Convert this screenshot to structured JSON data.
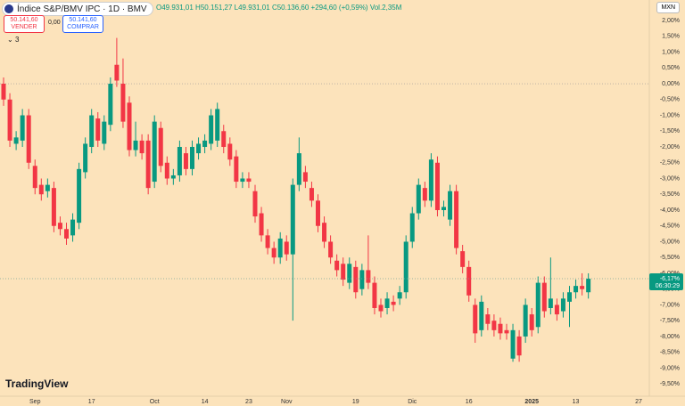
{
  "header": {
    "symbol_title": "Índice S&P/BMV IPC · 1D · BMV",
    "ohlc_open": "O49.931,01",
    "ohlc_high": "H50.151,27",
    "ohlc_low": "L49.931,01",
    "ohlc_close": "C50.136,60",
    "change": "+294,60 (+0,59%)",
    "volume": "Vol.2,35M",
    "sell_price": "50.141,60",
    "sell_label": "VENDER",
    "spread": "0,00",
    "buy_price": "50.141,60",
    "buy_label": "COMPRAR",
    "indicator_count": "3",
    "currency": "MXN",
    "brand": "TradingView"
  },
  "chart_data": {
    "type": "candlestick",
    "up_color": "#089981",
    "down_color": "#f23645",
    "grid": false,
    "categories": [
      null,
      null,
      null,
      null,
      null,
      "Sep",
      null,
      null,
      null,
      null,
      null,
      null,
      null,
      null,
      "17",
      null,
      null,
      null,
      null,
      null,
      null,
      null,
      null,
      null,
      "Oct",
      null,
      null,
      null,
      null,
      null,
      null,
      null,
      "14",
      null,
      null,
      null,
      null,
      null,
      null,
      "23",
      null,
      null,
      null,
      null,
      null,
      "Nov",
      null,
      null,
      null,
      null,
      null,
      null,
      null,
      null,
      null,
      null,
      "19",
      null,
      null,
      null,
      null,
      null,
      null,
      null,
      null,
      "Dic",
      null,
      null,
      null,
      null,
      null,
      null,
      null,
      null,
      "16",
      null,
      null,
      null,
      null,
      null,
      null,
      null,
      null,
      null,
      "2025",
      null,
      null,
      null,
      null,
      null,
      null,
      "13",
      null,
      null,
      null,
      null,
      null,
      null,
      null,
      null,
      null,
      "27"
    ],
    "open": [
      0.0,
      -0.5,
      -1.9,
      -1.8,
      -1.0,
      -2.6,
      -3.2,
      -3.4,
      -3.3,
      -4.4,
      -4.6,
      -4.8,
      -4.4,
      -2.8,
      -2.0,
      -1.1,
      -1.9,
      -1.3,
      0.6,
      0.0,
      -0.6,
      -2.1,
      -1.8,
      -1.8,
      -3.1,
      -1.4,
      -2.5,
      -3.0,
      -2.9,
      -2.2,
      -2.7,
      -2.2,
      -2.0,
      -1.9,
      -1.8,
      -1.5,
      -1.9,
      -2.3,
      -3.1,
      -3.0,
      -3.4,
      -4.1,
      -4.8,
      -5.2,
      -5.5,
      -5.0,
      -5.4,
      -3.2,
      -2.8,
      -3.3,
      -3.7,
      -4.4,
      -5.0,
      -5.6,
      -5.7,
      -6.3,
      -5.8,
      -6.5,
      -5.9,
      -6.3,
      -7.0,
      -7.1,
      -6.9,
      -6.8,
      -6.6,
      -5.0,
      -4.1,
      -3.3,
      -3.7,
      -2.5,
      -4.0,
      -4.3,
      -3.4,
      -5.3,
      -5.8,
      -7.0,
      -7.8,
      -7.3,
      -7.5,
      -7.6,
      -7.8,
      -8.7,
      -8.0,
      -8.0,
      -7.3,
      -7.7,
      -6.3,
      -7.1,
      -7.0,
      -7.2,
      -6.9,
      -6.6,
      -6.4,
      -6.6,
      null,
      null,
      null,
      null,
      null,
      null,
      null,
      null
    ],
    "high": [
      0.2,
      -0.3,
      -1.5,
      -0.8,
      -0.8,
      -2.4,
      -3.0,
      -3.0,
      -3.1,
      -4.2,
      -4.4,
      -4.1,
      -2.5,
      -1.7,
      -0.8,
      -0.9,
      -1.0,
      0.2,
      1.45,
      0.8,
      -0.4,
      -1.2,
      -1.6,
      -1.6,
      -1.0,
      -1.2,
      -2.3,
      -2.7,
      -1.8,
      -2.0,
      -1.8,
      -1.7,
      -1.6,
      -0.8,
      -0.6,
      -1.3,
      -1.7,
      -2.1,
      -2.8,
      -2.8,
      -3.2,
      -3.9,
      -4.6,
      -5.0,
      -4.7,
      -4.8,
      -3.0,
      -1.7,
      -2.6,
      -3.1,
      -3.5,
      -4.2,
      -4.8,
      -5.4,
      -5.5,
      -5.5,
      -5.6,
      -5.7,
      -4.8,
      -6.1,
      -6.8,
      -6.6,
      -6.7,
      -6.4,
      -4.8,
      -3.9,
      -3.0,
      -3.1,
      -2.2,
      -2.3,
      -3.7,
      -3.2,
      -3.2,
      -5.1,
      -5.6,
      -6.8,
      -6.7,
      -7.1,
      -7.3,
      -7.4,
      -7.6,
      -7.6,
      -7.8,
      -6.8,
      -7.1,
      -6.1,
      -6.1,
      -5.5,
      -6.8,
      -6.6,
      -6.4,
      -6.2,
      -6.0,
      -6.0,
      null,
      null,
      null,
      null,
      null,
      null,
      null,
      null
    ],
    "low": [
      -0.7,
      -2.0,
      -2.1,
      -2.0,
      -2.7,
      -3.5,
      -3.7,
      -3.6,
      -4.7,
      -4.8,
      -5.1,
      -5.0,
      -4.6,
      -3.0,
      -2.2,
      -2.0,
      -2.1,
      -1.5,
      -0.1,
      -1.4,
      -2.3,
      -2.3,
      -2.4,
      -3.5,
      -3.3,
      -2.8,
      -3.2,
      -3.2,
      -3.1,
      -2.9,
      -2.9,
      -2.4,
      -2.2,
      -2.1,
      -2.0,
      -2.2,
      -2.6,
      -3.3,
      -3.3,
      -3.3,
      -4.4,
      -5.0,
      -5.4,
      -5.7,
      -5.7,
      -5.6,
      -7.5,
      -3.4,
      -3.3,
      -3.9,
      -4.7,
      -5.2,
      -5.7,
      -6.1,
      -6.4,
      -6.5,
      -6.8,
      -6.7,
      -6.5,
      -7.3,
      -7.4,
      -7.3,
      -7.2,
      -7.0,
      -6.8,
      -5.2,
      -4.3,
      -3.9,
      -3.9,
      -4.2,
      -4.2,
      -4.5,
      -5.4,
      -6.0,
      -6.9,
      -8.2,
      -8.0,
      -7.8,
      -8.0,
      -8.1,
      -8.1,
      -8.8,
      -8.8,
      -8.2,
      -8.0,
      -7.9,
      -7.4,
      -7.3,
      -7.5,
      -7.4,
      -7.7,
      -6.8,
      -6.7,
      -6.8,
      null,
      null,
      null,
      null,
      null,
      null,
      null,
      null
    ],
    "close": [
      -0.5,
      -1.8,
      -1.7,
      -1.0,
      -2.5,
      -3.3,
      -3.5,
      -3.2,
      -4.5,
      -4.6,
      -4.9,
      -4.3,
      -2.7,
      -1.9,
      -1.0,
      -1.8,
      -1.2,
      0.0,
      0.1,
      -1.2,
      -2.1,
      -1.8,
      -2.2,
      -3.3,
      -1.2,
      -2.6,
      -3.0,
      -2.9,
      -2.0,
      -2.7,
      -2.0,
      -1.9,
      -1.8,
      -1.0,
      -0.8,
      -2.0,
      -2.4,
      -3.1,
      -3.0,
      -3.1,
      -4.2,
      -4.8,
      -5.2,
      -5.5,
      -4.9,
      -5.4,
      -3.2,
      -2.2,
      -3.1,
      -3.7,
      -4.5,
      -5.0,
      -5.5,
      -5.9,
      -6.2,
      -5.7,
      -6.6,
      -5.9,
      -6.3,
      -7.1,
      -7.2,
      -6.8,
      -7.0,
      -6.6,
      -5.0,
      -4.1,
      -3.2,
      -3.7,
      -2.4,
      -4.0,
      -3.9,
      -3.4,
      -5.2,
      -5.8,
      -6.7,
      -7.9,
      -6.9,
      -7.6,
      -7.8,
      -7.9,
      -7.9,
      -7.8,
      -8.6,
      -7.0,
      -7.8,
      -6.3,
      -7.2,
      -6.8,
      -7.3,
      -6.8,
      -6.6,
      -6.4,
      -6.5,
      -6.17,
      null,
      null,
      null,
      null,
      null,
      null,
      null,
      null
    ],
    "ylim": [
      -9.89,
      2.65
    ],
    "yticks": [
      {
        "value": 2.0,
        "label": "2,00%"
      },
      {
        "value": 1.5,
        "label": "1,50%"
      },
      {
        "value": 1.0,
        "label": "1,00%"
      },
      {
        "value": 0.5,
        "label": "0,50%"
      },
      {
        "value": 0,
        "label": "0,00%"
      },
      {
        "value": -0.5,
        "label": "-0,50%"
      },
      {
        "value": -1.0,
        "label": "-1,00%"
      },
      {
        "value": -1.5,
        "label": "-1,50%"
      },
      {
        "value": -2.0,
        "label": "-2,00%"
      },
      {
        "value": -2.5,
        "label": "-2,50%"
      },
      {
        "value": -3.0,
        "label": "-3,00%"
      },
      {
        "value": -3.5,
        "label": "-3,50%"
      },
      {
        "value": -4.0,
        "label": "-4,00%"
      },
      {
        "value": -4.5,
        "label": "-4,50%"
      },
      {
        "value": -5.0,
        "label": "-5,00%"
      },
      {
        "value": -5.5,
        "label": "-5,50%"
      },
      {
        "value": -6.0,
        "label": "-6,00%"
      },
      {
        "value": -6.5,
        "label": "-6,50%"
      },
      {
        "value": -7.0,
        "label": "-7,00%"
      },
      {
        "value": -7.5,
        "label": "-7,50%"
      },
      {
        "value": -8.0,
        "label": "-8,00%"
      },
      {
        "value": -8.5,
        "label": "-8,50%"
      },
      {
        "value": -9.0,
        "label": "-9,00%"
      },
      {
        "value": -9.5,
        "label": "-9,50%"
      }
    ],
    "baseline": 0,
    "last_value": {
      "value": -6.17,
      "label": "-6,17%"
    },
    "countdown": "06:30:29"
  }
}
